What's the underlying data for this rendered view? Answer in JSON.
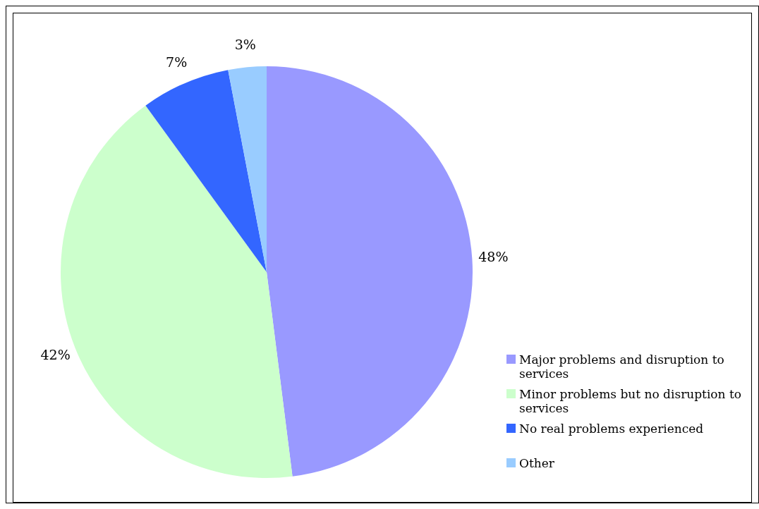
{
  "chart_data": {
    "type": "pie",
    "categories": [
      "Major problems and disruption to services",
      "Minor problems but no disruption to services",
      "No real problems experienced",
      "Other"
    ],
    "values": [
      48,
      42,
      7,
      3
    ],
    "colors": [
      "#9999ff",
      "#ccffcc",
      "#3366ff",
      "#99ccff"
    ],
    "value_labels": [
      "48%",
      "42%",
      "7%",
      "3%"
    ],
    "legend": "bottom right"
  }
}
